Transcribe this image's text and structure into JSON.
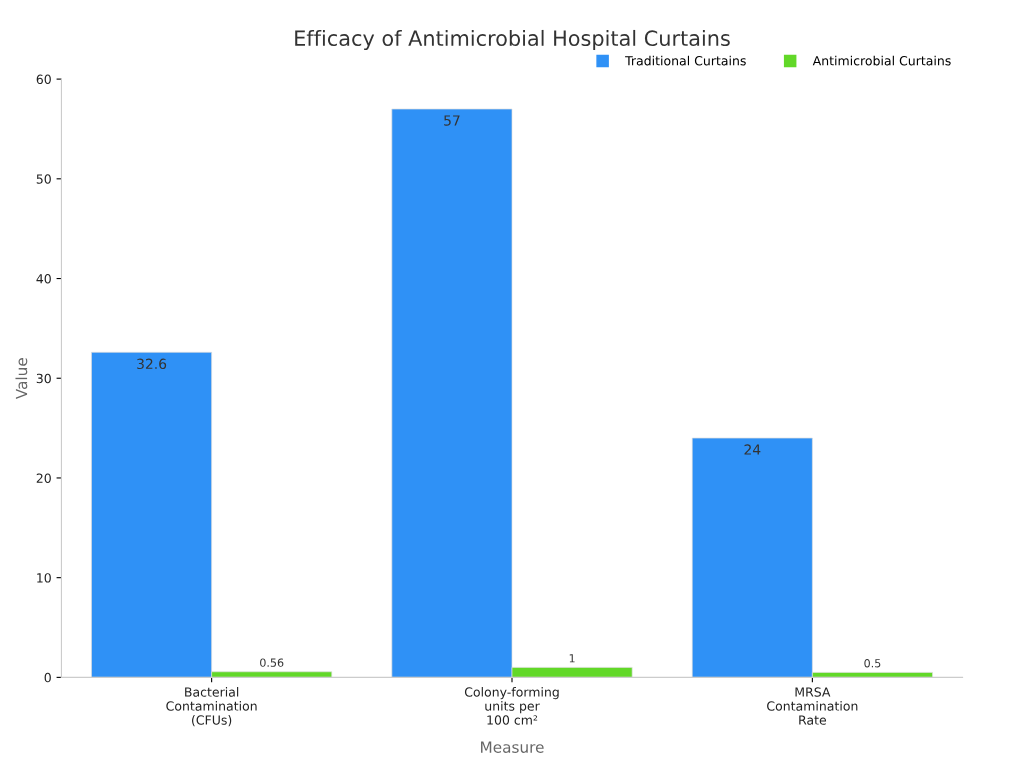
{
  "chart_data": {
    "type": "bar",
    "title": "Efficacy of Antimicrobial Hospital Curtains",
    "xlabel": "Measure",
    "ylabel": "Value",
    "categories": [
      "Bacterial\nContamination\n(CFUs)",
      "Colony-forming\nunits per\n100 cm²",
      "MRSA\nContamination\nRate"
    ],
    "series": [
      {
        "name": "Traditional Curtains",
        "color": "#2f91f6",
        "values": [
          32.6,
          57,
          24
        ]
      },
      {
        "name": "Antimicrobial Curtains",
        "color": "#62d828",
        "values": [
          0.56,
          1,
          0.5
        ]
      }
    ],
    "ylim": [
      0,
      60
    ],
    "yticks": [
      0,
      10,
      20,
      30,
      40,
      50,
      60
    ],
    "data_labels": true,
    "legend": "top right",
    "grid": false
  }
}
